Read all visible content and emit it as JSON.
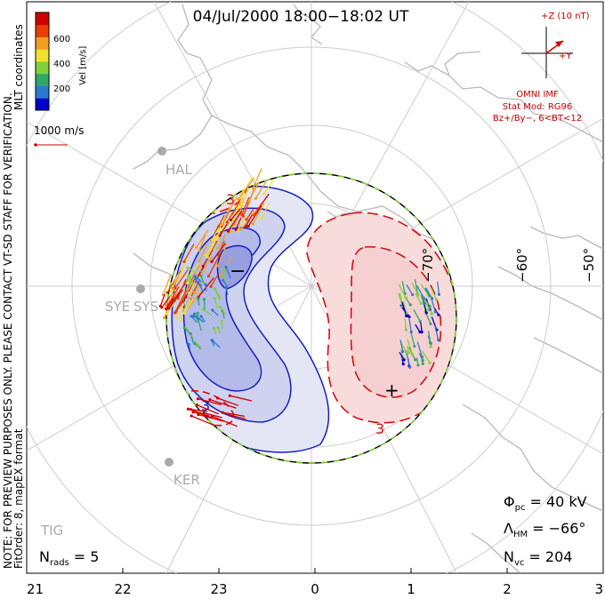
{
  "title": "04/Jul/2000 18:00−18:02 UT",
  "side_notes": {
    "preview_note": "NOTE: FOR PREVIEW PURPOSES ONLY. PLEASE CONTACT VT-SD STAFF FOR VERIFICATION.",
    "fit_info": "FitOrder: 8, mapEX format",
    "coords": "MLT coordinates"
  },
  "velocity_scale": {
    "label": "Vel [m/s]",
    "ticks": [
      "200",
      "400",
      "600"
    ],
    "colors": [
      "#0000cc",
      "#2a7ad0",
      "#2ea86a",
      "#7fd03a",
      "#f0e030",
      "#f0a020",
      "#e84000",
      "#d00000"
    ],
    "reference_vector": "1000 m/s"
  },
  "imf": {
    "scale_label": "+Z (10 nT)",
    "y_label": "+Y",
    "source": "OMNI IMF",
    "stat_mod": "Stat Mod: RG96",
    "condition": "Bz+/By−, 6<BT<12"
  },
  "stations": [
    "HAL",
    "SYE",
    "SYS",
    "KER",
    "TIG"
  ],
  "stats": {
    "phi_pc_sym": "Φ",
    "phi_pc_sub": "pc",
    "phi_pc_val": "= 40 kV",
    "lambda_hm_sym": "Λ",
    "lambda_hm_sub": "HM",
    "lambda_hm_val": "= −66°",
    "n_vc_sym": "N",
    "n_vc_sub": "vc",
    "n_vc_val": "= 204",
    "n_rads_sym": "N",
    "n_rads_sub": "rads",
    "n_rads_val": "= 5"
  },
  "contour_markers": {
    "min": "−",
    "max": "+",
    "label_3a": "3",
    "label_3b": "3",
    "label_3c": "3"
  },
  "chart_data": {
    "type": "polar-convection-map",
    "x_axis": {
      "ticks": [
        "21",
        "22",
        "23",
        "0",
        "1",
        "2",
        "3"
      ]
    },
    "lat_labels": [
      "−70°",
      "−60°",
      "−50°"
    ],
    "hmb_latitude": -66,
    "potential_min_marker": "−",
    "potential_max_marker": "+",
    "cross_polar_cap_potential_kV": 40,
    "n_vectors": 204,
    "n_radars": 5
  }
}
